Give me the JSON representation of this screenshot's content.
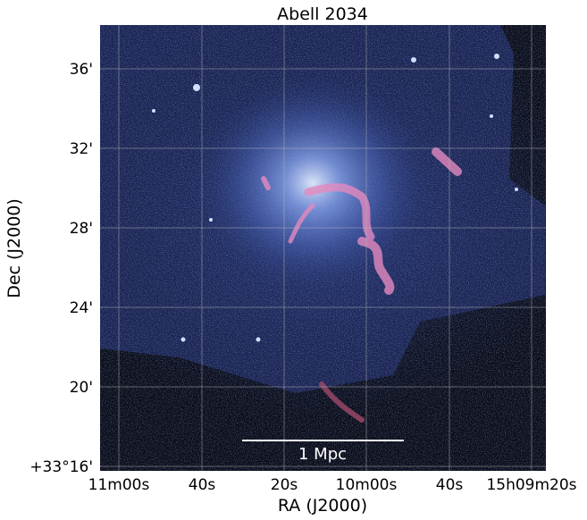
{
  "title": "Abell 2034",
  "x_axis": {
    "label": "RA (J2000)",
    "ticks": [
      "11m00s",
      "40s",
      "20s",
      "10m00s",
      "40s",
      "15h09m20s"
    ]
  },
  "y_axis": {
    "label": "Dec (J2000)",
    "ticks": [
      "36'",
      "32'",
      "28'",
      "24'",
      "20'",
      "+33°16'"
    ]
  },
  "scale_bar": {
    "label": "1 Mpc"
  }
}
